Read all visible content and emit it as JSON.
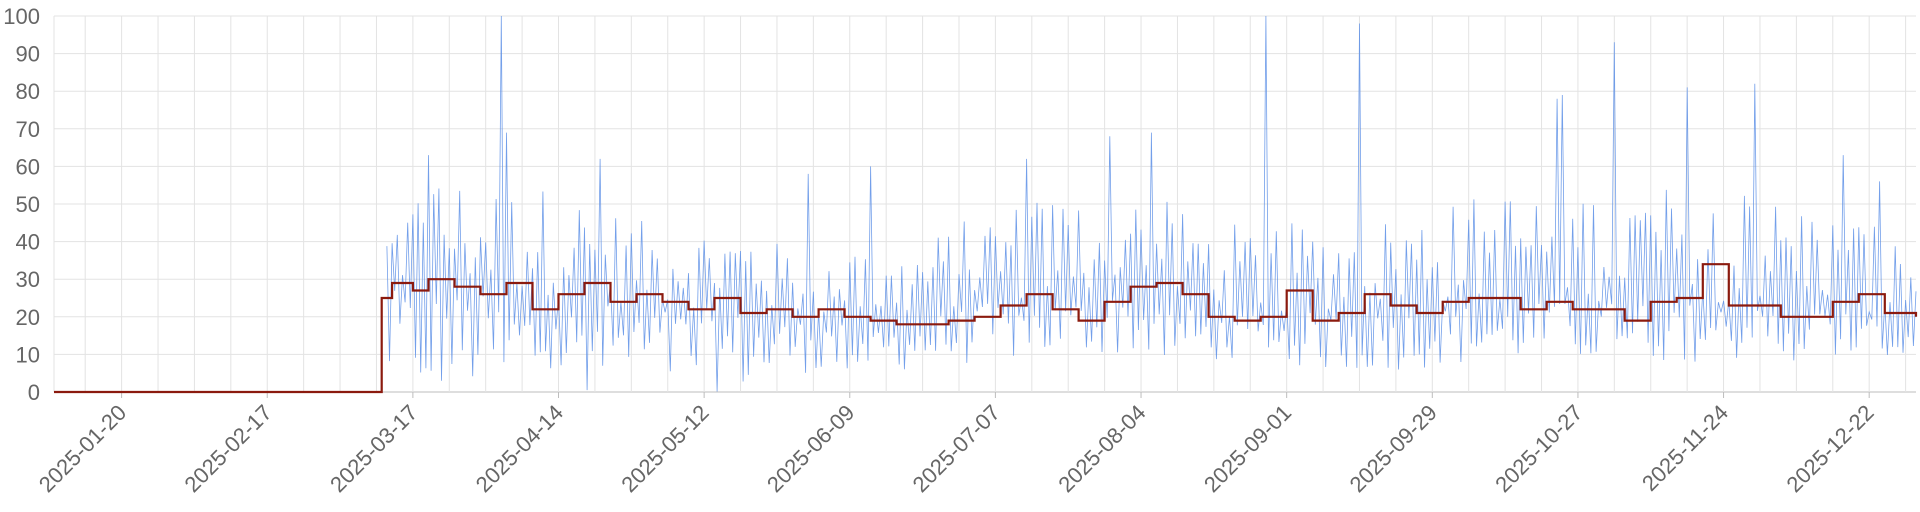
{
  "chart_data": {
    "type": "line",
    "title": "",
    "xlabel": "",
    "ylabel": "",
    "x_range": [
      "2025-01-07",
      "2025-12-31"
    ],
    "ylim": [
      0,
      100
    ],
    "grid": true,
    "yticks": [
      0,
      10,
      20,
      30,
      40,
      50,
      60,
      70,
      80,
      90,
      100
    ],
    "xticks": [
      "2025-01-20",
      "2025-02-17",
      "2025-03-17",
      "2025-04-14",
      "2025-05-12",
      "2025-06-09",
      "2025-07-07",
      "2025-08-04",
      "2025-09-01",
      "2025-09-29",
      "2025-10-27",
      "2025-11-24",
      "2025-12-22"
    ],
    "colors": {
      "raw": "#5b8ee6",
      "smoothed": "#8b1a0e",
      "grid": "#e3e3e3"
    },
    "series": [
      {
        "style": "thin noisy line (per-sample values, ~2/day)",
        "color": "#5b8ee6",
        "envelope": [
          {
            "x": "2025-03-12",
            "low": 0,
            "mean": 27,
            "high": 45
          },
          {
            "x": "2025-03-20",
            "low": 0,
            "mean": 27,
            "high": 60
          },
          {
            "x": "2025-04-01",
            "low": 0,
            "mean": 26,
            "high": 55
          },
          {
            "x": "2025-04-14",
            "low": 0,
            "mean": 25,
            "high": 55
          },
          {
            "x": "2025-05-01",
            "low": 0,
            "mean": 23,
            "high": 45
          },
          {
            "x": "2025-05-24",
            "low": 0,
            "mean": 21,
            "high": 45
          },
          {
            "x": "2025-05-26",
            "low": 5,
            "mean": 20,
            "high": 40
          },
          {
            "x": "2025-06-15",
            "low": 5,
            "mean": 18,
            "high": 35
          },
          {
            "x": "2025-07-07",
            "low": 8,
            "mean": 24,
            "high": 50
          },
          {
            "x": "2025-08-01",
            "low": 10,
            "mean": 26,
            "high": 55
          },
          {
            "x": "2025-08-20",
            "low": 8,
            "mean": 20,
            "high": 45
          },
          {
            "x": "2025-09-15",
            "low": 5,
            "mean": 22,
            "high": 45
          },
          {
            "x": "2025-10-15",
            "low": 8,
            "mean": 24,
            "high": 55
          },
          {
            "x": "2025-11-15",
            "low": 8,
            "mean": 24,
            "high": 55
          },
          {
            "x": "2025-12-15",
            "low": 8,
            "mean": 23,
            "high": 50
          },
          {
            "x": "2025-12-31",
            "low": 8,
            "mean": 18,
            "high": 38
          }
        ],
        "spikes": [
          {
            "x": "2025-04-03",
            "y": 100
          },
          {
            "x": "2025-04-04",
            "y": 69
          },
          {
            "x": "2025-03-20",
            "y": 63
          },
          {
            "x": "2025-04-22",
            "y": 62
          },
          {
            "x": "2025-06-13",
            "y": 60
          },
          {
            "x": "2025-06-01",
            "y": 58
          },
          {
            "x": "2025-07-13",
            "y": 62
          },
          {
            "x": "2025-07-29",
            "y": 68
          },
          {
            "x": "2025-08-06",
            "y": 69
          },
          {
            "x": "2025-08-28",
            "y": 100
          },
          {
            "x": "2025-09-15",
            "y": 98
          },
          {
            "x": "2025-10-23",
            "y": 78
          },
          {
            "x": "2025-10-24",
            "y": 79
          },
          {
            "x": "2025-11-03",
            "y": 93
          },
          {
            "x": "2025-11-17",
            "y": 81
          },
          {
            "x": "2025-11-30",
            "y": 82
          },
          {
            "x": "2025-12-17",
            "y": 63
          },
          {
            "x": "2025-12-24",
            "y": 56
          }
        ]
      },
      {
        "style": "step line (smoothed values)",
        "color": "#8b1a0e",
        "x": [
          "2025-01-07",
          "2025-03-10",
          "2025-03-11",
          "2025-03-13",
          "2025-03-17",
          "2025-03-20",
          "2025-03-25",
          "2025-03-30",
          "2025-04-04",
          "2025-04-09",
          "2025-04-14",
          "2025-04-19",
          "2025-04-24",
          "2025-04-29",
          "2025-05-04",
          "2025-05-09",
          "2025-05-14",
          "2025-05-19",
          "2025-05-24",
          "2025-05-29",
          "2025-06-03",
          "2025-06-08",
          "2025-06-13",
          "2025-06-18",
          "2025-06-23",
          "2025-06-28",
          "2025-07-03",
          "2025-07-08",
          "2025-07-13",
          "2025-07-18",
          "2025-07-23",
          "2025-07-28",
          "2025-08-02",
          "2025-08-07",
          "2025-08-12",
          "2025-08-17",
          "2025-08-22",
          "2025-08-27",
          "2025-09-01",
          "2025-09-06",
          "2025-09-11",
          "2025-09-16",
          "2025-09-21",
          "2025-09-26",
          "2025-10-01",
          "2025-10-06",
          "2025-10-11",
          "2025-10-16",
          "2025-10-21",
          "2025-10-26",
          "2025-10-31",
          "2025-11-05",
          "2025-11-10",
          "2025-11-15",
          "2025-11-20",
          "2025-11-25",
          "2025-11-30",
          "2025-12-05",
          "2025-12-10",
          "2025-12-15",
          "2025-12-20",
          "2025-12-25",
          "2025-12-31"
        ],
        "y": [
          0,
          0,
          25,
          29,
          27,
          30,
          28,
          26,
          29,
          22,
          26,
          29,
          24,
          26,
          24,
          22,
          25,
          21,
          22,
          20,
          22,
          20,
          19,
          18,
          18,
          19,
          20,
          23,
          26,
          22,
          19,
          24,
          28,
          29,
          26,
          20,
          19,
          20,
          27,
          19,
          21,
          26,
          23,
          21,
          24,
          25,
          25,
          22,
          24,
          22,
          22,
          19,
          24,
          25,
          34,
          23,
          23,
          20,
          20,
          24,
          26,
          21,
          20
        ]
      }
    ]
  }
}
